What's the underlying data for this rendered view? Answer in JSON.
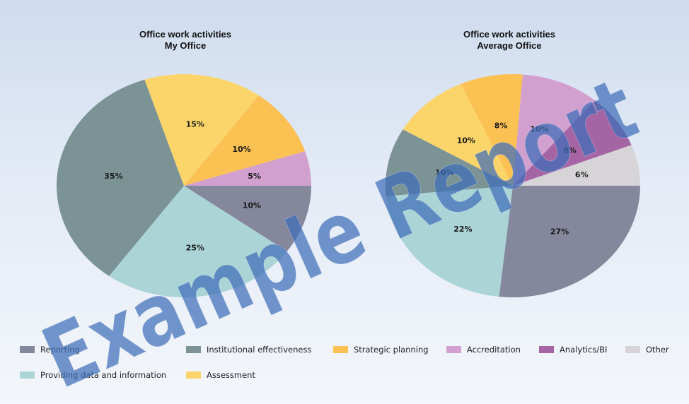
{
  "colors": {
    "Reporting": "#85879d",
    "Institutional effectiveness": "#7c9396",
    "Strategic planning": "#fbc153",
    "Accreditation": "#d1a0cf",
    "Analytics/BI": "#a564a4",
    "Other": "#d6d4d7",
    "Providing data and information": "#abd4d6",
    "Assessment": "#fbd56a",
    "watermark": "#3f6db8"
  },
  "legend": {
    "items": [
      "Reporting",
      "Institutional effectiveness",
      "Strategic planning",
      "Accreditation",
      "Analytics/BI",
      "Other",
      "Providing data and information",
      "Assessment"
    ]
  },
  "watermark": {
    "text": "Example Report"
  },
  "chart_data": [
    {
      "type": "pie",
      "title": [
        "Office work activities",
        "My Office"
      ],
      "slices": [
        {
          "label": "Reporting",
          "value": 10,
          "display": "10%"
        },
        {
          "label": "Providing data and information",
          "value": 25,
          "display": "25%"
        },
        {
          "label": "Institutional effectiveness",
          "value": 35,
          "display": "35%"
        },
        {
          "label": "Assessment",
          "value": 15,
          "display": "15%"
        },
        {
          "label": "Strategic planning",
          "value": 10,
          "display": "10%"
        },
        {
          "label": "Accreditation",
          "value": 5,
          "display": "5%"
        }
      ]
    },
    {
      "type": "pie",
      "title": [
        "Office work activities",
        "Average Office"
      ],
      "slices": [
        {
          "label": "Reporting",
          "value": 27,
          "display": "27%"
        },
        {
          "label": "Providing data and information",
          "value": 22,
          "display": "22%"
        },
        {
          "label": "Institutional effectiveness",
          "value": 10,
          "display": "10%"
        },
        {
          "label": "Assessment",
          "value": 10,
          "display": "10%"
        },
        {
          "label": "Strategic planning",
          "value": 8,
          "display": "8%"
        },
        {
          "label": "Accreditation",
          "value": 10,
          "display": "10%"
        },
        {
          "label": "Analytics/BI",
          "value": 8,
          "display": "8%"
        },
        {
          "label": "Other",
          "value": 6,
          "display": "6%"
        }
      ]
    }
  ]
}
